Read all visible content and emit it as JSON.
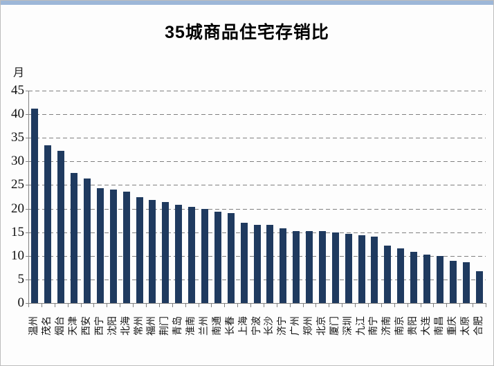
{
  "window": {
    "top_strip_color": "#9db7d8",
    "frame_border_color": "#bdbdbd"
  },
  "chart_data": {
    "type": "bar",
    "title": "35城商品住宅存销比",
    "unit_label": "月",
    "xlabel": "",
    "ylabel": "月",
    "ylim": [
      0,
      45
    ],
    "yticks": [
      45,
      40,
      35,
      30,
      25,
      20,
      15,
      10,
      5,
      0
    ],
    "grid": "horizontal-dashed",
    "legend_position": "none",
    "bar_color": "#1f3a5f",
    "gridline_color": "#7f7f7f",
    "categories": [
      "温州",
      "茂名",
      "烟台",
      "天津",
      "西安",
      "西宁",
      "沈阳",
      "北海",
      "常州",
      "福州",
      "荆门",
      "青岛",
      "淮南",
      "兰州",
      "南通",
      "长春",
      "上海",
      "宁波",
      "长沙",
      "济宁",
      "广州",
      "郑州",
      "北京",
      "厦门",
      "深圳",
      "九江",
      "南宁",
      "济南",
      "南京",
      "贵阳",
      "大连",
      "南昌",
      "重庆",
      "太原",
      "合肥"
    ],
    "values": [
      41.2,
      33.4,
      32.3,
      27.6,
      26.4,
      24.4,
      24.1,
      23.6,
      22.4,
      21.8,
      21.4,
      20.8,
      20.4,
      19.9,
      19.3,
      19.0,
      17.0,
      16.6,
      16.5,
      15.9,
      15.3,
      15.2,
      15.2,
      14.9,
      14.6,
      14.3,
      14.0,
      12.1,
      11.6,
      10.9,
      10.3,
      10.0,
      8.9,
      8.6,
      6.8
    ]
  }
}
